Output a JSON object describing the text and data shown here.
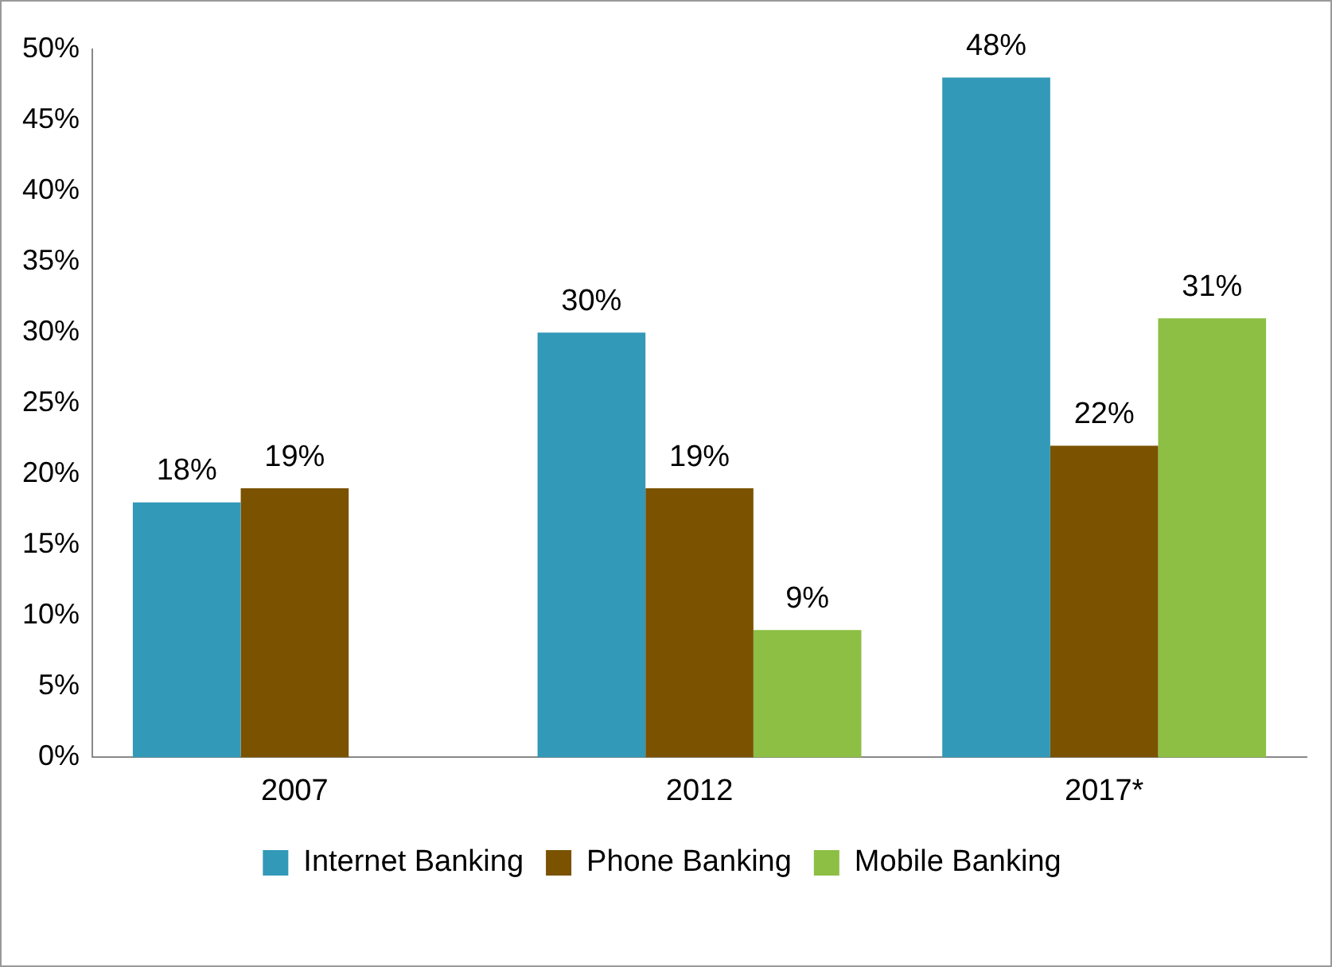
{
  "chart_data": {
    "type": "bar",
    "categories": [
      "2007",
      "2012",
      "2017*"
    ],
    "series": [
      {
        "name": "Internet Banking",
        "color": "#3399b8",
        "values": [
          18,
          30,
          48
        ],
        "value_labels": [
          "18%",
          "30%",
          "48%"
        ]
      },
      {
        "name": "Phone Banking",
        "color": "#7a5200",
        "values": [
          19,
          19,
          22
        ],
        "value_labels": [
          "19%",
          "19%",
          "22%"
        ]
      },
      {
        "name": "Mobile Banking",
        "color": "#8cbf44",
        "values": [
          null,
          9,
          31
        ],
        "value_labels": [
          null,
          "9%",
          "31%"
        ]
      }
    ],
    "ylim": [
      0,
      50
    ],
    "yticks": [
      {
        "value": 0,
        "label": "0%"
      },
      {
        "value": 5,
        "label": "5%"
      },
      {
        "value": 10,
        "label": "10%"
      },
      {
        "value": 15,
        "label": "15%"
      },
      {
        "value": 20,
        "label": "20%"
      },
      {
        "value": 25,
        "label": "25%"
      },
      {
        "value": 30,
        "label": "30%"
      },
      {
        "value": 35,
        "label": "35%"
      },
      {
        "value": 40,
        "label": "40%"
      },
      {
        "value": 45,
        "label": "45%"
      },
      {
        "value": 50,
        "label": "50%"
      }
    ],
    "grid": false,
    "legend": "bottom"
  }
}
